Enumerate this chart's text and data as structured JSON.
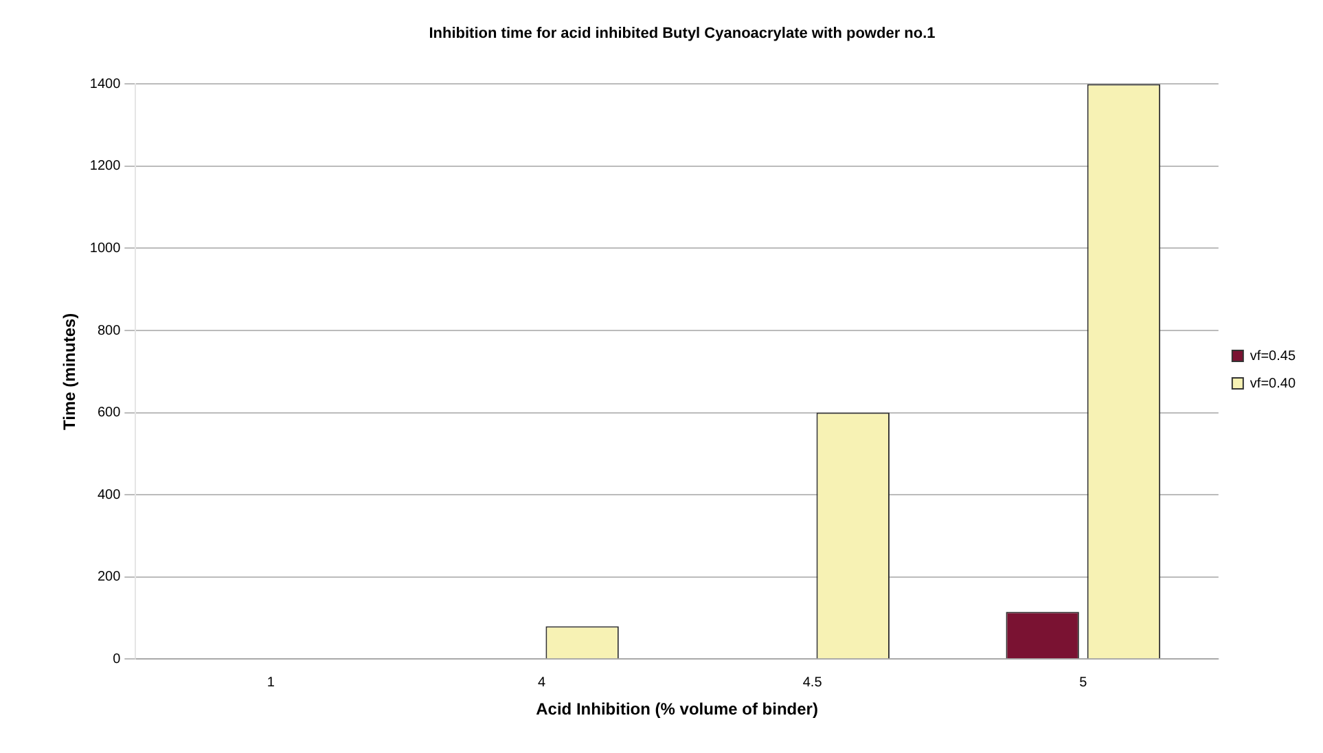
{
  "chart_data": {
    "type": "bar",
    "title": "Inhibition time for acid inhibited Butyl Cyanoacrylate with powder no.1",
    "xlabel": "Acid Inhibition (% volume of binder)",
    "ylabel": "Time (minutes)",
    "categories": [
      "1",
      "4",
      "4.5",
      "5"
    ],
    "series": [
      {
        "name": "vf=0.45",
        "color": "#7a1232",
        "values": [
          0,
          0,
          0,
          115
        ]
      },
      {
        "name": "vf=0.40",
        "color": "#f7f2b4",
        "values": [
          0,
          80,
          600,
          1400
        ]
      }
    ],
    "ylim": [
      0,
      1400
    ],
    "yticks": [
      0,
      200,
      400,
      600,
      800,
      1000,
      1200,
      1400
    ],
    "grid": "y",
    "legend": "right"
  }
}
